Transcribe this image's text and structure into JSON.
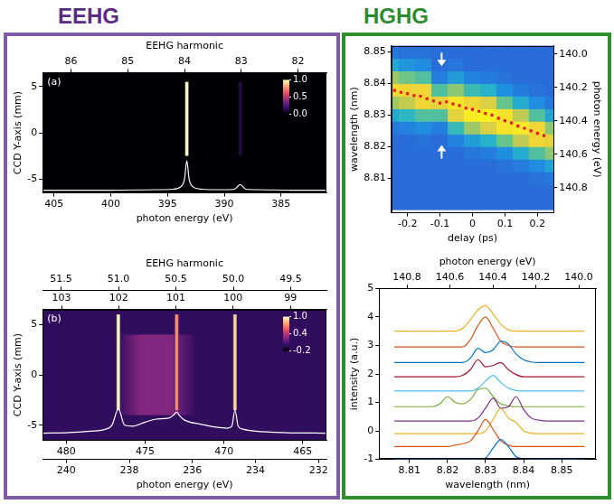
{
  "header": {
    "left": "EEHG",
    "right": "HGHG"
  },
  "chart_data": [
    {
      "type": "heatmap",
      "panel_label": "(a)",
      "x_label": "photon energy (eV)",
      "xlim": [
        406,
        381
      ],
      "xticks": [
        405,
        400,
        395,
        390,
        385
      ],
      "x2_label": "EEHG harmonic",
      "x2lim": [
        86.5,
        81.5
      ],
      "x2ticks": [
        86,
        85,
        84,
        83,
        82
      ],
      "y_label": "CCD Y-axis (mm)",
      "ylim": [
        -6.5,
        6.5
      ],
      "yticks": [
        -5,
        0,
        5
      ],
      "image": {
        "background": 0,
        "stripes": [
          {
            "x": 393.3,
            "width": 0.4,
            "y_range": [
              -2.5,
              5.5
            ],
            "value": 1
          },
          {
            "x": 388.6,
            "width": 0.4,
            "y_range": [
              -2.5,
              5.5
            ],
            "value": 0.12
          }
        ]
      },
      "colorbar": {
        "range": [
          0,
          1
        ],
        "ticks": [
          {
            "value": 0,
            "label": "0.0"
          },
          {
            "value": 0.5,
            "label": "0.5"
          },
          {
            "value": 1,
            "label": "1.0"
          }
        ],
        "colors": [
          "#000004",
          "#3b0f70",
          "#8c2981",
          "#de4968",
          "#fe9f6d",
          "#fcfdbf"
        ]
      },
      "series": [
        {
          "type": "line",
          "color": "#ffffff",
          "x": [
            406,
            400,
            396,
            394.5,
            393.8,
            393.5,
            393.3,
            393.1,
            392.8,
            392,
            390,
            389.1,
            388.6,
            388.1,
            387,
            384,
            381
          ],
          "values": [
            -6.2,
            -6.2,
            -6.15,
            -6.1,
            -5.8,
            -5.0,
            -3.0,
            -5.0,
            -5.8,
            -6.1,
            -6.15,
            -6.1,
            -5.6,
            -6.1,
            -6.15,
            -6.2,
            -6.2
          ]
        }
      ]
    },
    {
      "type": "heatmap",
      "panel_label": "(b)",
      "x_label": "photon energy (eV)",
      "xlim": [
        481.5,
        463.5
      ],
      "xticks": [
        480,
        475,
        470,
        465
      ],
      "x4lim": [
        240.75,
        231.75
      ],
      "x4ticks": [
        240,
        238,
        236,
        234,
        232
      ],
      "x2_label": "EEHG harmonic",
      "x2lim": [
        51.66,
        49.19
      ],
      "x2ticks": [
        51.5,
        {
          "value": 51,
          "label": "51.0"
        },
        50.5,
        {
          "value": 50,
          "label": "50.0"
        },
        49.5
      ],
      "x3lim": [
        103.33,
        98.37
      ],
      "x3ticks": [
        103,
        102,
        101,
        100,
        99
      ],
      "y_label": "CCD Y-axis (mm)",
      "ylim": [
        -6.5,
        6.5
      ],
      "yticks": [
        -5,
        0,
        5
      ],
      "image": {
        "background": 0,
        "stripes": [
          {
            "x": 474.3,
            "width": 5,
            "y_range": [
              -4,
              4
            ],
            "value": 0.25
          },
          {
            "x": 476.7,
            "width": 0.3,
            "y_range": [
              -3.5,
              6
            ],
            "value": 1
          },
          {
            "x": 473.0,
            "width": 0.3,
            "y_range": [
              -3.5,
              6
            ],
            "value": 0.7
          },
          {
            "x": 469.3,
            "width": 0.3,
            "y_range": [
              -3.5,
              6
            ],
            "value": 0.9
          }
        ]
      },
      "colorbar": {
        "range": [
          -0.2,
          1
        ],
        "ticks": [
          -0.2,
          0.4,
          {
            "value": 1,
            "label": "1.0"
          }
        ],
        "colors": [
          "#000004",
          "#3b0f70",
          "#8c2981",
          "#de4968",
          "#fe9f6d",
          "#fcfdbf"
        ]
      },
      "series": [
        {
          "type": "line",
          "color": "#ffffff",
          "x": [
            481.5,
            480,
            478.5,
            477.5,
            477.1,
            476.7,
            476.3,
            475.8,
            475,
            474.3,
            473.5,
            473.2,
            473.0,
            472.8,
            472.5,
            471.5,
            470.5,
            469.8,
            469.5,
            469.3,
            469.1,
            468.8,
            468,
            466,
            463.5
          ],
          "values": [
            -5.8,
            -5.75,
            -5.6,
            -5.4,
            -5.0,
            -3.4,
            -5.0,
            -5.1,
            -4.7,
            -4.4,
            -4.3,
            -4.0,
            -3.7,
            -4.1,
            -4.5,
            -4.9,
            -5.2,
            -5.3,
            -5.1,
            -3.5,
            -5.1,
            -5.4,
            -5.6,
            -5.75,
            -5.8
          ]
        }
      ]
    },
    {
      "type": "heatmap",
      "x_label": "delay (ps)",
      "xlim": [
        -0.25,
        0.25
      ],
      "xticks": [
        -0.2,
        -0.1,
        0,
        0.1,
        0.2
      ],
      "y_label": "wavelength (nm)",
      "ylim": [
        8.799,
        8.852
      ],
      "yticks": [
        8.81,
        8.82,
        8.83,
        8.84,
        8.85
      ],
      "y2_label": "photon energy (eV)",
      "y2lim": [
        140.95,
        139.95
      ],
      "y2ticks": [
        {
          "value": 140,
          "label": "140.0"
        },
        140.2,
        140.4,
        140.6,
        140.8
      ],
      "cells": {
        "x": [
          -0.25,
          -0.2,
          -0.15,
          -0.1,
          -0.05,
          0,
          0.05,
          0.1,
          0.15,
          0.2,
          0.25
        ],
        "y": [
          8.802,
          8.806,
          8.81,
          8.814,
          8.818,
          8.822,
          8.826,
          8.83,
          8.834,
          8.838,
          8.842,
          8.846,
          8.85
        ],
        "values": [
          [
            0.05,
            0.05,
            0.05,
            0.05,
            0.05,
            0.05,
            0.05,
            0.05,
            0.05,
            0.05,
            0.05
          ],
          [
            0.05,
            0.05,
            0.05,
            0.05,
            0.05,
            0.05,
            0.05,
            0.05,
            0.05,
            0.05,
            0.05
          ],
          [
            0.05,
            0.05,
            0.05,
            0.05,
            0.05,
            0.05,
            0.05,
            0.05,
            0.05,
            0.07,
            0.09
          ],
          [
            0.05,
            0.05,
            0.05,
            0.05,
            0.05,
            0.05,
            0.05,
            0.07,
            0.1,
            0.16,
            0.25
          ],
          [
            0.05,
            0.05,
            0.05,
            0.05,
            0.05,
            0.08,
            0.1,
            0.17,
            0.29,
            0.46,
            0.59
          ],
          [
            0.05,
            0.05,
            0.07,
            0.05,
            0.13,
            0.23,
            0.32,
            0.51,
            0.7,
            0.83,
            0.8
          ],
          [
            0.09,
            0.12,
            0.16,
            0.11,
            0.38,
            0.62,
            0.77,
            0.92,
            0.95,
            0.83,
            0.59
          ],
          [
            0.27,
            0.35,
            0.46,
            0.45,
            0.8,
            0.98,
            1.0,
            0.92,
            0.7,
            0.46,
            0.25
          ],
          [
            0.63,
            0.71,
            0.83,
            0.8,
            0.93,
            0.84,
            0.77,
            0.51,
            0.29,
            0.16,
            0.09
          ],
          [
            0.85,
            0.83,
            0.83,
            0.45,
            0.59,
            0.4,
            0.32,
            0.17,
            0.1,
            0.07,
            0.05
          ],
          [
            0.63,
            0.53,
            0.46,
            0.11,
            0.22,
            0.13,
            0.1,
            0.07,
            0.05,
            0.05,
            0.05
          ],
          [
            0.27,
            0.2,
            0.16,
            0.05,
            0.08,
            0.05,
            0.05,
            0.05,
            0.05,
            0.05,
            0.05
          ],
          [
            0.09,
            0.07,
            0.07,
            0.05,
            0.05,
            0.05,
            0.05,
            0.05,
            0.05,
            0.05,
            0.05
          ]
        ]
      },
      "colorscale": {
        "range": [
          0,
          1
        ],
        "colors": [
          "#2c5fd6",
          "#1f8fe0",
          "#27b5c8",
          "#5fc48f",
          "#b5c95a",
          "#f0d535",
          "#f9f020"
        ]
      },
      "series": [
        {
          "type": "scatter",
          "color": "#e8141c",
          "marker": "square",
          "x": [
            -0.24,
            -0.22,
            -0.2,
            -0.18,
            -0.16,
            -0.14,
            -0.12,
            -0.1,
            -0.08,
            -0.06,
            -0.04,
            -0.02,
            0,
            0.02,
            0.04,
            0.06,
            0.08,
            0.1,
            0.12,
            0.14,
            0.16,
            0.18,
            0.2,
            0.22
          ],
          "values": [
            8.8378,
            8.8372,
            8.8368,
            8.8362,
            8.836,
            8.8352,
            8.8345,
            8.8338,
            8.8342,
            8.8335,
            8.833,
            8.8322,
            8.8318,
            8.8312,
            8.8305,
            8.83,
            8.829,
            8.8282,
            8.8275,
            8.8265,
            8.8258,
            8.825,
            8.8242,
            8.8235
          ]
        }
      ],
      "arrows": [
        {
          "x": -0.095,
          "y": 8.8455,
          "direction": "down"
        },
        {
          "x": -0.095,
          "y": 8.8205,
          "direction": "up"
        }
      ]
    },
    {
      "type": "line",
      "x_label": "wavelength (nm)",
      "xlim": [
        8.802,
        8.859
      ],
      "xticks": [
        8.81,
        8.82,
        8.83,
        8.84,
        8.85
      ],
      "x2_label": "photon energy (eV)",
      "x2lim": [
        140.93,
        139.92
      ],
      "x2ticks": [
        140.8,
        140.6,
        140.4,
        140.2,
        {
          "value": 140,
          "label": "140.0"
        }
      ],
      "y_label": "intensity (a.u.)",
      "ylim": [
        -1,
        5
      ],
      "yticks": [
        -1,
        0,
        1,
        2,
        3,
        4,
        5
      ],
      "x": [
        8.806,
        8.808,
        8.81,
        8.812,
        8.814,
        8.816,
        8.818,
        8.82,
        8.822,
        8.824,
        8.826,
        8.828,
        8.83,
        8.832,
        8.834,
        8.836,
        8.838,
        8.84,
        8.842,
        8.844,
        8.846,
        8.848,
        8.85,
        8.852,
        8.854,
        8.856
      ],
      "series": [
        {
          "color": "#0072bd",
          "values": [
            -1,
            -1,
            -1,
            -1,
            -1,
            -1,
            -1,
            -1,
            -1,
            -1,
            -1,
            -1,
            -0.95,
            -0.6,
            -0.3,
            -0.55,
            -0.9,
            -0.98,
            -1,
            -1,
            -1,
            -1,
            -1,
            -1,
            -1,
            -1
          ]
        },
        {
          "color": "#d95319",
          "values": [
            -0.55,
            -0.55,
            -0.55,
            -0.55,
            -0.55,
            -0.55,
            -0.55,
            -0.55,
            -0.5,
            -0.45,
            -0.35,
            0.0,
            0.4,
            0.05,
            -0.35,
            -0.5,
            -0.55,
            -0.55,
            -0.55,
            -0.55,
            -0.55,
            -0.55,
            -0.55,
            -0.55,
            -0.55,
            -0.55
          ]
        },
        {
          "color": "#edb120",
          "values": [
            -0.1,
            -0.1,
            -0.1,
            -0.1,
            -0.1,
            -0.1,
            -0.1,
            -0.1,
            -0.1,
            -0.1,
            -0.1,
            -0.1,
            0.0,
            0.4,
            0.8,
            0.45,
            0.3,
            0.0,
            -0.08,
            -0.1,
            -0.1,
            -0.1,
            -0.1,
            -0.1,
            -0.1,
            -0.1
          ]
        },
        {
          "color": "#7e2f8e",
          "values": [
            0.35,
            0.35,
            0.35,
            0.35,
            0.35,
            0.35,
            0.35,
            0.35,
            0.35,
            0.35,
            0.35,
            0.45,
            0.8,
            1.15,
            0.8,
            0.85,
            1.2,
            0.75,
            0.45,
            0.38,
            0.35,
            0.35,
            0.35,
            0.35,
            0.35,
            0.35
          ]
        },
        {
          "color": "#77ac30",
          "values": [
            0.85,
            0.85,
            0.85,
            0.85,
            0.85,
            0.85,
            0.95,
            1.2,
            1.0,
            0.95,
            1.1,
            1.45,
            1.5,
            1.2,
            0.95,
            0.88,
            0.85,
            0.85,
            0.85,
            0.85,
            0.85,
            0.85,
            0.85,
            0.85,
            0.85,
            0.85
          ]
        },
        {
          "color": "#4dbeee",
          "values": [
            1.4,
            1.4,
            1.4,
            1.4,
            1.4,
            1.4,
            1.4,
            1.4,
            1.4,
            1.4,
            1.4,
            1.5,
            1.75,
            1.95,
            1.7,
            1.5,
            1.42,
            1.4,
            1.4,
            1.4,
            1.4,
            1.4,
            1.4,
            1.4,
            1.4,
            1.4
          ]
        },
        {
          "color": "#a2142f",
          "values": [
            1.9,
            1.9,
            1.9,
            1.9,
            1.9,
            1.9,
            1.9,
            1.9,
            1.9,
            1.95,
            2.15,
            2.5,
            2.25,
            2.3,
            2.4,
            2.15,
            1.98,
            1.9,
            1.9,
            1.9,
            1.9,
            1.9,
            1.9,
            1.9,
            1.9,
            1.9
          ]
        },
        {
          "color": "#0072bd",
          "values": [
            2.4,
            2.4,
            2.4,
            2.4,
            2.4,
            2.4,
            2.4,
            2.4,
            2.4,
            2.4,
            2.55,
            2.9,
            2.75,
            2.85,
            3.15,
            3.05,
            2.7,
            2.5,
            2.42,
            2.4,
            2.4,
            2.4,
            2.4,
            2.4,
            2.4,
            2.4
          ]
        },
        {
          "color": "#d95319",
          "values": [
            2.95,
            2.95,
            2.95,
            2.95,
            2.95,
            2.95,
            2.95,
            2.95,
            2.95,
            2.95,
            3.2,
            3.7,
            4.0,
            3.6,
            3.15,
            3.0,
            2.95,
            2.95,
            2.95,
            2.95,
            2.95,
            2.95,
            2.95,
            2.95,
            2.95,
            2.95
          ]
        },
        {
          "color": "#edb120",
          "values": [
            3.5,
            3.5,
            3.5,
            3.5,
            3.5,
            3.5,
            3.5,
            3.5,
            3.5,
            3.6,
            3.9,
            4.25,
            4.4,
            4.1,
            3.75,
            3.55,
            3.5,
            3.5,
            3.5,
            3.5,
            3.5,
            3.5,
            3.5,
            3.5,
            3.5,
            3.5
          ]
        }
      ]
    }
  ]
}
